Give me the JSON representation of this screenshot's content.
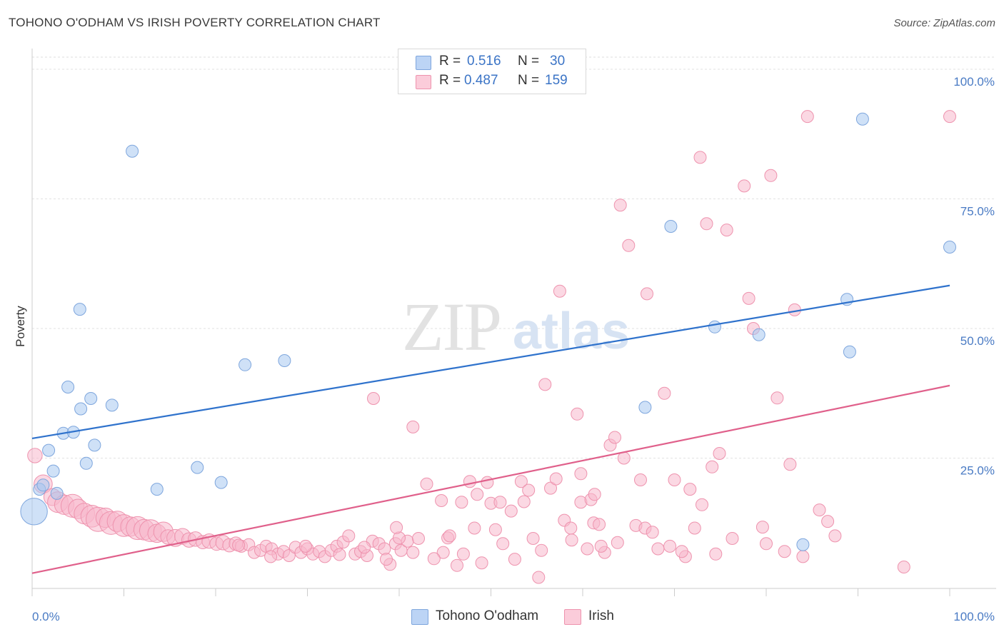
{
  "title": "TOHONO O'ODHAM VS IRISH POVERTY CORRELATION CHART",
  "source": "Source: ZipAtlas.com",
  "watermark": {
    "zip": "ZIP",
    "atlas": "atlas"
  },
  "legend": {
    "r_label": "R =",
    "n_label": "N =",
    "series": [
      {
        "name": "Tohono O'odham",
        "r": "0.516",
        "n": "30",
        "color": "#a8c8f0",
        "stroke": "#7ea6dd"
      },
      {
        "name": "Irish",
        "r": "0.487",
        "n": "159",
        "color": "#f8b8cc",
        "stroke": "#ee93ae"
      }
    ]
  },
  "chart_data": {
    "type": "scatter",
    "title": "TOHONO O'ODHAM VS IRISH POVERTY CORRELATION CHART",
    "xlabel": "",
    "ylabel": "Poverty",
    "xlim": [
      0,
      100
    ],
    "ylim": [
      0,
      100
    ],
    "x_tick_labels": [
      "0.0%",
      "100.0%"
    ],
    "y_tick_labels": [
      "100.0%",
      "75.0%",
      "50.0%",
      "25.0%"
    ],
    "y_ticks": [
      100,
      75,
      50,
      25
    ],
    "grid": true,
    "series": [
      {
        "name": "Tohono O'odham",
        "color": "#a8c8f0",
        "stroke": "#7ea6dd",
        "trend": {
          "x": [
            0,
            100
          ],
          "y": [
            28.8,
            58.3
          ],
          "color": "#2f72cc"
        },
        "points": [
          [
            0.2,
            14.7,
            2.2
          ],
          [
            0.8,
            19.0,
            1
          ],
          [
            1.2,
            19.8,
            1
          ],
          [
            1.8,
            26.5,
            1
          ],
          [
            2.3,
            22.5,
            1
          ],
          [
            2.7,
            18.2,
            1
          ],
          [
            3.4,
            29.8,
            1
          ],
          [
            3.9,
            38.7,
            1
          ],
          [
            4.5,
            30.0,
            1
          ],
          [
            5.2,
            53.7,
            1
          ],
          [
            5.3,
            34.5,
            1
          ],
          [
            5.9,
            24.0,
            1
          ],
          [
            6.4,
            36.5,
            1
          ],
          [
            6.8,
            27.5,
            1
          ],
          [
            8.7,
            35.2,
            1
          ],
          [
            10.9,
            84.2,
            1
          ],
          [
            13.6,
            19.0,
            1
          ],
          [
            18.0,
            23.2,
            1
          ],
          [
            20.6,
            20.3,
            1
          ],
          [
            23.2,
            43.0,
            1
          ],
          [
            27.5,
            43.8,
            1
          ],
          [
            66.8,
            34.8,
            1
          ],
          [
            69.6,
            69.7,
            1
          ],
          [
            74.4,
            50.3,
            1
          ],
          [
            79.2,
            48.8,
            1
          ],
          [
            84.0,
            8.3,
            1
          ],
          [
            88.8,
            55.6,
            1
          ],
          [
            89.1,
            45.5,
            1
          ],
          [
            90.5,
            90.4,
            1
          ],
          [
            100.0,
            65.7,
            1
          ]
        ]
      },
      {
        "name": "Irish",
        "color": "#f8b8cc",
        "stroke": "#ee93ae",
        "trend": {
          "x": [
            0,
            100
          ],
          "y": [
            2.8,
            39.0
          ],
          "color": "#e0608b"
        },
        "points": [
          [
            0.3,
            25.5,
            1.2
          ],
          [
            1.2,
            20.0,
            1.5
          ],
          [
            2.2,
            17.5,
            1.4
          ],
          [
            2.8,
            16.5,
            1.7
          ],
          [
            3.5,
            16.0,
            1.6
          ],
          [
            4.4,
            15.8,
            1.9
          ],
          [
            5.0,
            15.2,
            1.6
          ],
          [
            5.7,
            14.3,
            1.7
          ],
          [
            6.5,
            13.8,
            1.8
          ],
          [
            7.2,
            13.2,
            2.0
          ],
          [
            8.0,
            13.5,
            1.6
          ],
          [
            8.6,
            12.5,
            1.9
          ],
          [
            9.3,
            12.8,
            1.7
          ],
          [
            10.0,
            12.0,
            1.8
          ],
          [
            10.7,
            11.8,
            1.6
          ],
          [
            11.5,
            11.5,
            1.9
          ],
          [
            12.2,
            11.2,
            1.7
          ],
          [
            12.9,
            11.0,
            1.8
          ],
          [
            13.6,
            10.5,
            1.5
          ],
          [
            14.3,
            10.8,
            1.6
          ],
          [
            14.8,
            9.8,
            1.2
          ],
          [
            15.6,
            9.6,
            1.4
          ],
          [
            16.4,
            9.9,
            1.3
          ],
          [
            17.1,
            9.2,
            1.2
          ],
          [
            17.8,
            9.4,
            1.2
          ],
          [
            18.6,
            8.8,
            1.1
          ],
          [
            19.3,
            9.0,
            1.2
          ],
          [
            20.1,
            8.5,
            1.1
          ],
          [
            20.8,
            8.7,
            1.2
          ],
          [
            21.5,
            8.2,
            1.1
          ],
          [
            22.2,
            8.5,
            1.1
          ],
          [
            22.8,
            8.0,
            1.0
          ],
          [
            23.6,
            8.3,
            1.0
          ],
          [
            24.2,
            6.8,
            1.0
          ],
          [
            24.9,
            7.2,
            1.0
          ],
          [
            25.5,
            8.0,
            1.0
          ],
          [
            26.1,
            7.5,
            1.0
          ],
          [
            26.8,
            6.5,
            1.0
          ],
          [
            27.4,
            7.0,
            1.0
          ],
          [
            28.0,
            6.2,
            1.0
          ],
          [
            28.7,
            7.8,
            1.0
          ],
          [
            29.3,
            6.8,
            1.0
          ],
          [
            30.0,
            7.5,
            1.0
          ],
          [
            30.6,
            6.5,
            1.0
          ],
          [
            31.3,
            7.0,
            1.0
          ],
          [
            31.9,
            6.0,
            1.0
          ],
          [
            32.6,
            7.2,
            1.0
          ],
          [
            33.2,
            8.0,
            1.0
          ],
          [
            33.9,
            8.8,
            1.0
          ],
          [
            34.5,
            10.0,
            1.0
          ],
          [
            35.2,
            6.5,
            1.0
          ],
          [
            35.8,
            7.0,
            1.0
          ],
          [
            36.5,
            6.2,
            1.0
          ],
          [
            37.1,
            9.0,
            1.0
          ],
          [
            37.8,
            8.5,
            1.0
          ],
          [
            38.4,
            7.5,
            1.0
          ],
          [
            39.0,
            4.5,
            1.0
          ],
          [
            39.6,
            8.5,
            1.0
          ],
          [
            40.2,
            7.2,
            1.0
          ],
          [
            40.9,
            9.0,
            1.0
          ],
          [
            41.5,
            6.8,
            1.0
          ],
          [
            42.1,
            9.5,
            1.0
          ],
          [
            22.5,
            8.2,
            1.0
          ],
          [
            26.0,
            6.0,
            1.0
          ],
          [
            29.8,
            8.0,
            1.0
          ],
          [
            33.5,
            6.4,
            1.0
          ],
          [
            36.2,
            7.8,
            1.0
          ],
          [
            38.6,
            5.5,
            1.0
          ],
          [
            40.0,
            9.6,
            1.0
          ],
          [
            44.8,
            6.8,
            1.0
          ],
          [
            45.3,
            9.6,
            1.0
          ],
          [
            46.3,
            4.3,
            1.0
          ],
          [
            47.0,
            6.5,
            1.0
          ],
          [
            48.2,
            11.5,
            1.0
          ],
          [
            49.0,
            4.8,
            1.0
          ],
          [
            50.0,
            16.3,
            1.0
          ],
          [
            50.5,
            11.2,
            1.0
          ],
          [
            51.3,
            8.5,
            1.0
          ],
          [
            52.2,
            14.8,
            1.0
          ],
          [
            52.6,
            5.5,
            1.0
          ],
          [
            53.3,
            20.5,
            1.0
          ],
          [
            54.1,
            18.8,
            1.0
          ],
          [
            54.6,
            9.5,
            1.0
          ],
          [
            55.2,
            2.0,
            1.0
          ],
          [
            55.5,
            7.2,
            1.0
          ],
          [
            56.5,
            19.2,
            1.0
          ],
          [
            57.1,
            21.0,
            1.0
          ],
          [
            57.5,
            57.2,
            1.0
          ],
          [
            58.0,
            13.0,
            1.0
          ],
          [
            58.7,
            11.5,
            1.0
          ],
          [
            59.4,
            33.5,
            1.0
          ],
          [
            59.8,
            16.5,
            1.0
          ],
          [
            60.5,
            7.5,
            1.0
          ],
          [
            61.2,
            12.5,
            1.0
          ],
          [
            61.8,
            12.2,
            1.0
          ],
          [
            62.4,
            6.8,
            1.0
          ],
          [
            63.0,
            27.5,
            1.0
          ],
          [
            63.5,
            29.0,
            1.0
          ],
          [
            64.1,
            73.8,
            1.0
          ],
          [
            65.0,
            66.0,
            1.0
          ],
          [
            65.8,
            12.0,
            1.0
          ],
          [
            66.3,
            20.8,
            1.0
          ],
          [
            67.0,
            56.7,
            1.0
          ],
          [
            68.2,
            7.5,
            1.0
          ],
          [
            68.9,
            37.5,
            1.0
          ],
          [
            69.5,
            8.0,
            1.0
          ],
          [
            70.0,
            20.8,
            1.0
          ],
          [
            71.2,
            6.0,
            1.0
          ],
          [
            71.7,
            19.0,
            1.0
          ],
          [
            72.2,
            11.5,
            1.0
          ],
          [
            72.8,
            83.0,
            1.0
          ],
          [
            73.5,
            70.2,
            1.0
          ],
          [
            74.1,
            23.3,
            1.0
          ],
          [
            74.5,
            6.5,
            1.0
          ],
          [
            74.9,
            25.9,
            1.0
          ],
          [
            75.7,
            69.0,
            1.0
          ],
          [
            77.6,
            77.5,
            1.0
          ],
          [
            78.1,
            55.8,
            1.0
          ],
          [
            78.6,
            50.0,
            1.0
          ],
          [
            79.6,
            11.7,
            1.0
          ],
          [
            80.5,
            79.5,
            1.0
          ],
          [
            81.2,
            36.6,
            1.0
          ],
          [
            82.6,
            23.8,
            1.0
          ],
          [
            83.1,
            53.6,
            1.0
          ],
          [
            84.0,
            6.0,
            1.0
          ],
          [
            84.5,
            90.9,
            1.0
          ],
          [
            85.8,
            15.0,
            1.0
          ],
          [
            37.2,
            36.5,
            1.0
          ],
          [
            41.5,
            31.0,
            1.0
          ],
          [
            44.6,
            16.8,
            1.0
          ],
          [
            43.0,
            20.0,
            1.0
          ],
          [
            46.8,
            16.5,
            1.0
          ],
          [
            47.7,
            20.5,
            1.0
          ],
          [
            48.5,
            18.0,
            1.0
          ],
          [
            45.5,
            10.0,
            1.0
          ],
          [
            51.0,
            16.5,
            1.0
          ],
          [
            53.6,
            16.6,
            1.0
          ],
          [
            55.9,
            39.2,
            1.0
          ],
          [
            58.8,
            9.2,
            1.0
          ],
          [
            59.8,
            22.0,
            1.0
          ],
          [
            60.9,
            17.0,
            1.0
          ],
          [
            62.0,
            8.0,
            1.0
          ],
          [
            64.5,
            25.0,
            1.0
          ],
          [
            66.8,
            11.5,
            1.0
          ],
          [
            70.8,
            7.0,
            1.0
          ],
          [
            73.0,
            16.0,
            1.0
          ],
          [
            76.3,
            9.5,
            1.0
          ],
          [
            80.0,
            8.5,
            1.0
          ],
          [
            82.0,
            7.0,
            1.0
          ],
          [
            86.7,
            12.8,
            1.0
          ],
          [
            87.5,
            10.0,
            1.0
          ],
          [
            95.0,
            4.0,
            1.0
          ],
          [
            100.0,
            90.9,
            1.0
          ],
          [
            49.6,
            20.3,
            1.0
          ],
          [
            39.7,
            11.6,
            1.0
          ],
          [
            43.8,
            5.6,
            1.0
          ],
          [
            61.3,
            18.0,
            1.0
          ],
          [
            63.8,
            8.7,
            1.0
          ],
          [
            67.6,
            10.7,
            1.0
          ]
        ]
      }
    ]
  }
}
